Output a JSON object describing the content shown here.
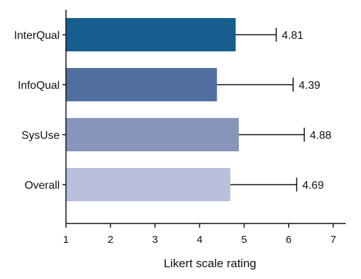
{
  "chart_data": {
    "type": "bar",
    "orientation": "horizontal",
    "categories": [
      "InterQual",
      "InfoQual",
      "SysUse",
      "Overall"
    ],
    "values": [
      4.81,
      4.39,
      4.88,
      4.69
    ],
    "value_labels": [
      "4.81",
      "4.39",
      "4.88",
      "4.69"
    ],
    "error_upper": [
      5.72,
      6.1,
      6.35,
      6.18
    ],
    "bar_colors": [
      "#155e8f",
      "#506ea0",
      "#8795bb",
      "#b9c0db"
    ],
    "xlabel": "Likert scale rating",
    "xlim": [
      1,
      7
    ],
    "xticks": [
      1,
      2,
      3,
      4,
      5,
      6,
      7
    ],
    "grid": false,
    "legend": "none"
  }
}
